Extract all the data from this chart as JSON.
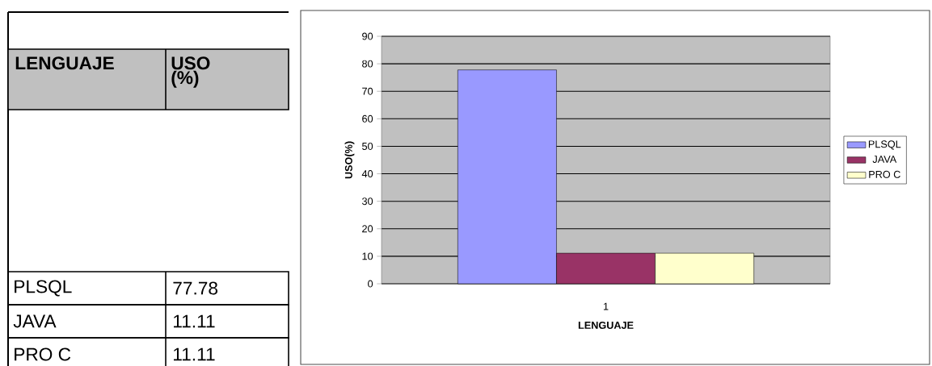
{
  "chart_data": {
    "type": "bar",
    "xlabel": "LENGUAJE",
    "ylabel": "USO(%)",
    "categories": [
      "1"
    ],
    "series": [
      {
        "name": "PLSQL",
        "color": "#9999ff",
        "values": [
          77.78
        ]
      },
      {
        "name": "JAVA",
        "color": "#993366",
        "values": [
          11.11
        ]
      },
      {
        "name": "PRO C",
        "color": "#ffffcc",
        "values": [
          11.11
        ]
      }
    ],
    "ylim": [
      0,
      90
    ],
    "yticks": [
      0,
      10,
      20,
      30,
      40,
      50,
      60,
      70,
      80,
      90
    ],
    "grid": "y",
    "legend": "right",
    "annotations": [
      "LENGUAJE",
      "USO (%)",
      "77.78",
      "11.11",
      "11.11"
    ]
  }
}
